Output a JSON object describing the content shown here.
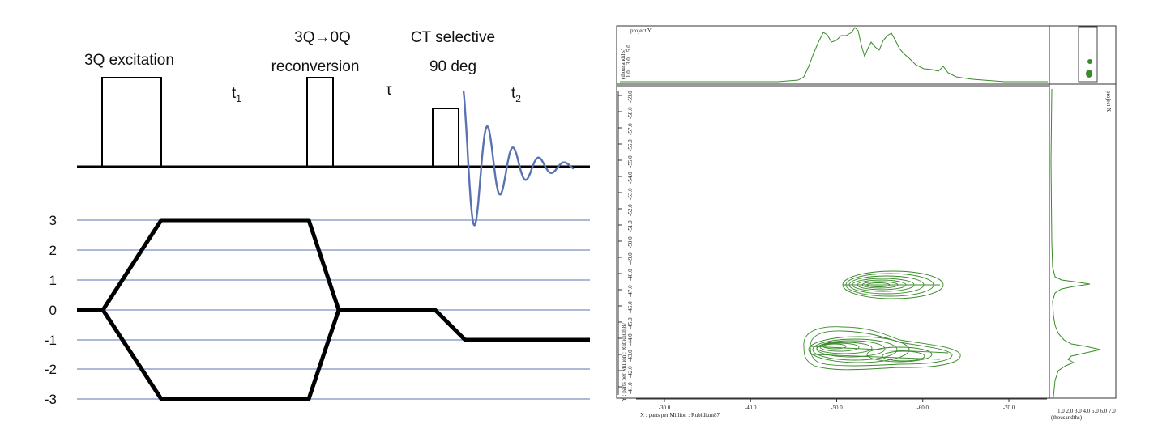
{
  "pulse_sequence": {
    "labels": {
      "excitation": "3Q excitation",
      "t1_base": "t",
      "t1_sub": "1",
      "reconversion_line1": "3Q→0Q",
      "reconversion_line2": "reconversion",
      "tau": "τ",
      "selective_line1": "CT selective",
      "selective_line2": "90 deg",
      "t2_base": "t",
      "t2_sub": "2"
    },
    "fid_color": "#5a73b0"
  },
  "coherence_diagram": {
    "levels": [
      "3",
      "2",
      "1",
      "0",
      "-1",
      "-2",
      "-3"
    ],
    "gridline_color": "#5a73b0"
  },
  "spectrum": {
    "top_projection_label": "project Y",
    "top_projection_axis": [
      "(thousandths)",
      "1.0",
      "3.0",
      "5.0"
    ],
    "right_projection_label": "project X",
    "x_axis_label": "X : parts per Million : Rubidium87",
    "y_axis_label": "Y : parts per Million : Rubidium87",
    "x_ticks": [
      "-30.0",
      "-40.0",
      "-50.0",
      "-60.0",
      "-70.0"
    ],
    "y_ticks": [
      "-59.0",
      "-58.0",
      "-57.0",
      "-56.0",
      "-55.0",
      "-54.0",
      "-53.0",
      "-52.0",
      "-51.0",
      "-50.0",
      "-49.0",
      "-48.0",
      "-47.0",
      "-46.0",
      "-45.0",
      "-44.0",
      "-43.0",
      "-42.0",
      "-41.0"
    ],
    "right_projection_ticks": "1.0 2.0 3.0 4.0 5.0 6.0 7.0",
    "right_projection_unit": "(thousandths)",
    "contour_color": "#3a8a2a"
  }
}
